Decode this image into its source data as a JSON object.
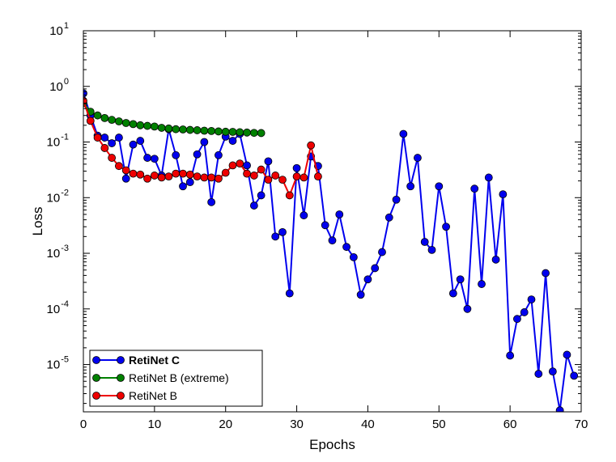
{
  "chart_data": {
    "type": "line",
    "xlabel": "Epochs",
    "ylabel": "Loss",
    "xlim": [
      0,
      70
    ],
    "ylim_log10": [
      -5.85,
      1
    ],
    "yscale": "log",
    "x_ticks": [
      "0",
      "10",
      "20",
      "30",
      "40",
      "50",
      "60",
      "70"
    ],
    "y_tick_exponents": [
      "1",
      "0",
      "-1",
      "-2",
      "-3",
      "-4",
      "-5"
    ],
    "y_tick_base": "10",
    "legend_position": "lower-left",
    "series": [
      {
        "name": "RetiNet C",
        "color": "#0000ee",
        "bold": true,
        "x": [
          0,
          1,
          2,
          3,
          4,
          5,
          6,
          7,
          8,
          9,
          10,
          11,
          12,
          13,
          14,
          15,
          16,
          17,
          18,
          19,
          20,
          21,
          22,
          23,
          24,
          25,
          26,
          27,
          28,
          29,
          30,
          31,
          32,
          33,
          34,
          35,
          36,
          37,
          38,
          39,
          40,
          41,
          42,
          43,
          44,
          45,
          46,
          47,
          48,
          49,
          50,
          51,
          52,
          53,
          54,
          55,
          56,
          57,
          58,
          59,
          60,
          61,
          62,
          63,
          64,
          65,
          66,
          67,
          68,
          69
        ],
        "y": [
          0.75,
          0.3,
          0.13,
          0.12,
          0.095,
          0.12,
          0.022,
          0.09,
          0.105,
          0.052,
          0.05,
          0.025,
          0.17,
          0.058,
          0.016,
          0.019,
          0.06,
          0.1,
          0.0083,
          0.058,
          0.125,
          0.105,
          0.14,
          0.038,
          0.0072,
          0.011,
          0.045,
          0.002,
          0.0024,
          0.00019,
          0.034,
          0.0048,
          0.055,
          0.037,
          0.0032,
          0.0017,
          0.005,
          0.0013,
          0.00085,
          0.00018,
          0.00034,
          0.00054,
          0.00105,
          0.0044,
          0.0092,
          0.14,
          0.016,
          0.052,
          0.0016,
          0.00115,
          0.016,
          0.003,
          0.00019,
          0.00034,
          0.0001,
          0.0145,
          0.00028,
          0.023,
          0.00077,
          0.0115,
          1.45e-05,
          6.6e-05,
          8.7e-05,
          0.000148,
          6.8e-06,
          0.00044,
          7.5e-06,
          1.5e-06,
          1.5e-05,
          6.3e-06
        ]
      },
      {
        "name": "RetiNet B (extreme)",
        "color": "#008000",
        "bold": false,
        "x": [
          0,
          1,
          2,
          3,
          4,
          5,
          6,
          7,
          8,
          9,
          10,
          11,
          12,
          13,
          14,
          15,
          16,
          17,
          18,
          19,
          20,
          21,
          22,
          23,
          24,
          25
        ],
        "y": [
          0.5,
          0.35,
          0.3,
          0.27,
          0.25,
          0.235,
          0.22,
          0.21,
          0.2,
          0.195,
          0.19,
          0.18,
          0.175,
          0.17,
          0.168,
          0.165,
          0.163,
          0.16,
          0.158,
          0.155,
          0.153,
          0.152,
          0.15,
          0.148,
          0.146,
          0.145
        ]
      },
      {
        "name": "RetiNet B",
        "color": "#ee0000",
        "bold": false,
        "x": [
          0,
          1,
          2,
          3,
          4,
          5,
          6,
          7,
          8,
          9,
          10,
          11,
          12,
          13,
          14,
          15,
          16,
          17,
          18,
          19,
          20,
          21,
          22,
          23,
          24,
          25,
          26,
          27,
          28,
          29,
          30,
          31,
          32,
          33
        ],
        "y": [
          0.55,
          0.24,
          0.12,
          0.078,
          0.052,
          0.037,
          0.031,
          0.027,
          0.026,
          0.022,
          0.025,
          0.023,
          0.024,
          0.027,
          0.027,
          0.026,
          0.024,
          0.023,
          0.023,
          0.022,
          0.028,
          0.038,
          0.041,
          0.027,
          0.025,
          0.032,
          0.021,
          0.025,
          0.021,
          0.011,
          0.024,
          0.023,
          0.087,
          0.024
        ]
      }
    ]
  }
}
